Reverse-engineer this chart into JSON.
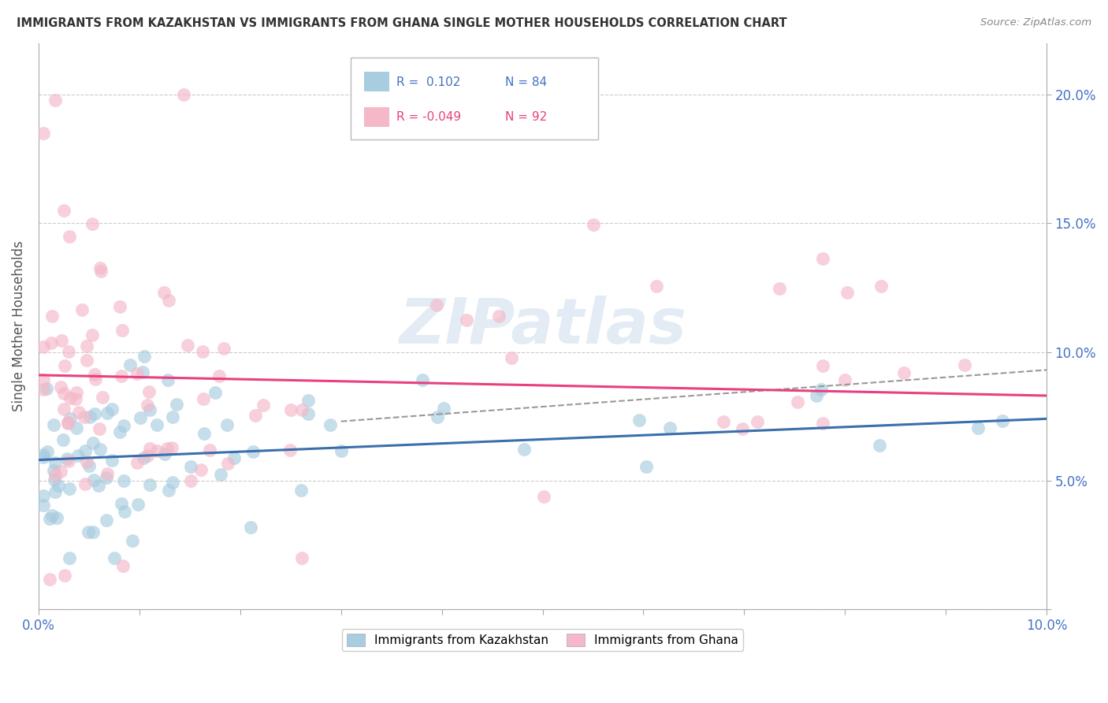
{
  "title": "IMMIGRANTS FROM KAZAKHSTAN VS IMMIGRANTS FROM GHANA SINGLE MOTHER HOUSEHOLDS CORRELATION CHART",
  "source": "Source: ZipAtlas.com",
  "ylabel": "Single Mother Households",
  "xlim": [
    0.0,
    0.1
  ],
  "ylim": [
    0.0,
    0.22
  ],
  "kazakhstan_color": "#a8cce0",
  "kazakhstan_line_color": "#3a6fad",
  "ghana_color": "#f4b8c8",
  "ghana_line_color": "#e84080",
  "kazakhstan_R": 0.102,
  "kazakhstan_N": 84,
  "ghana_R": -0.049,
  "ghana_N": 92,
  "watermark_text": "ZIPatlas",
  "background_color": "#ffffff",
  "grid_color": "#cccccc",
  "tick_label_color": "#4472c4",
  "title_color": "#333333",
  "ylabel_color": "#555555"
}
